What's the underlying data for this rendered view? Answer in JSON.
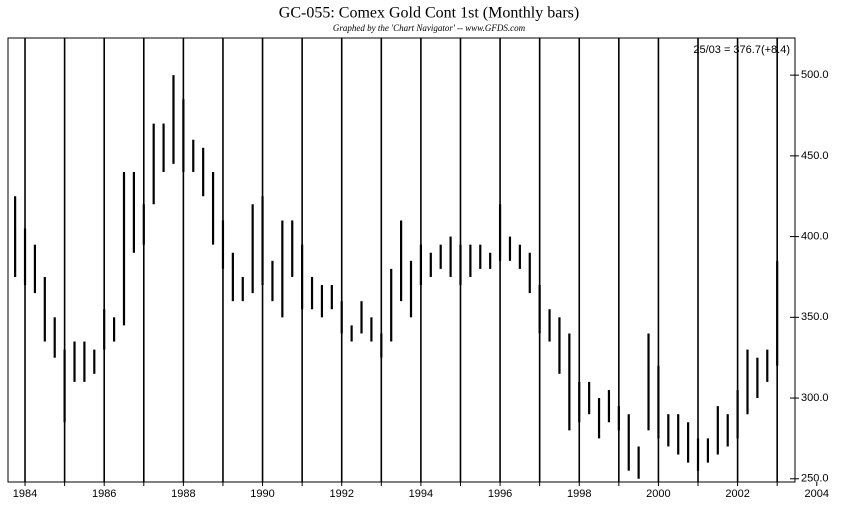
{
  "chart_data": {
    "type": "hilo",
    "title": "GC-055: Comex Gold Cont 1st  (Monthly bars)",
    "subtitle": "Graphed by the 'Chart Navigator' -- www.GFDS.com",
    "annotation": "25/03 = 376.7(+8.4)",
    "color": "#000000",
    "x": [
      1983.75,
      1984,
      1984.25,
      1984.5,
      1984.75,
      1985,
      1985.25,
      1985.5,
      1985.75,
      1986,
      1986.25,
      1986.5,
      1986.75,
      1987,
      1987.25,
      1987.5,
      1987.75,
      1988,
      1988.25,
      1988.5,
      1988.75,
      1989,
      1989.25,
      1989.5,
      1989.75,
      1990,
      1990.25,
      1990.5,
      1990.75,
      1991,
      1991.25,
      1991.5,
      1991.75,
      1992,
      1992.25,
      1992.5,
      1992.75,
      1993,
      1993.25,
      1993.5,
      1993.75,
      1994,
      1994.25,
      1994.5,
      1994.75,
      1995,
      1995.25,
      1995.5,
      1995.75,
      1996,
      1996.25,
      1996.5,
      1996.75,
      1997,
      1997.25,
      1997.5,
      1997.75,
      1998,
      1998.25,
      1998.5,
      1998.75,
      1999,
      1999.25,
      1999.5,
      1999.75,
      2000,
      2000.25,
      2000.5,
      2000.75,
      2001,
      2001.25,
      2001.5,
      2001.75,
      2002,
      2002.25,
      2002.5,
      2002.75,
      2003
    ],
    "low": [
      375,
      370,
      365,
      335,
      325,
      285,
      310,
      310,
      315,
      330,
      335,
      345,
      390,
      395,
      420,
      440,
      445,
      440,
      440,
      425,
      395,
      380,
      360,
      360,
      365,
      370,
      360,
      350,
      375,
      355,
      355,
      350,
      355,
      340,
      335,
      340,
      335,
      325,
      335,
      360,
      350,
      370,
      375,
      380,
      375,
      370,
      375,
      380,
      380,
      385,
      385,
      380,
      365,
      340,
      335,
      315,
      280,
      285,
      290,
      275,
      285,
      280,
      255,
      250,
      280,
      275,
      270,
      265,
      260,
      255,
      260,
      265,
      270,
      275,
      290,
      300,
      310,
      320
    ],
    "high": [
      425,
      405,
      395,
      375,
      350,
      330,
      335,
      335,
      330,
      355,
      350,
      440,
      440,
      420,
      470,
      470,
      500,
      485,
      460,
      455,
      440,
      410,
      390,
      375,
      420,
      425,
      385,
      410,
      410,
      395,
      375,
      370,
      370,
      360,
      345,
      360,
      350,
      340,
      380,
      410,
      385,
      395,
      390,
      395,
      400,
      395,
      395,
      395,
      390,
      420,
      400,
      395,
      390,
      370,
      355,
      350,
      340,
      310,
      310,
      300,
      305,
      295,
      290,
      270,
      340,
      320,
      290,
      290,
      285,
      275,
      275,
      295,
      290,
      305,
      330,
      325,
      330,
      385
    ],
    "xlim": [
      1983.57,
      2003.45
    ],
    "xticks": [
      1984,
      1986,
      1988,
      1990,
      1992,
      1994,
      1996,
      1998,
      2000,
      2002,
      2004
    ],
    "minor_xticks": [
      1985,
      1987,
      1989,
      1991,
      1993,
      1995,
      1997,
      1999,
      2001,
      2003
    ],
    "ylim": [
      248,
      523
    ],
    "yticks": [
      {
        "value": 250,
        "label": "250.0"
      },
      {
        "value": 300,
        "label": "300.0"
      },
      {
        "value": 350,
        "label": "350.0"
      },
      {
        "value": 400,
        "label": "400.0"
      },
      {
        "value": 450,
        "label": "450.0"
      },
      {
        "value": 500,
        "label": "500.0"
      }
    ],
    "grid": true
  }
}
